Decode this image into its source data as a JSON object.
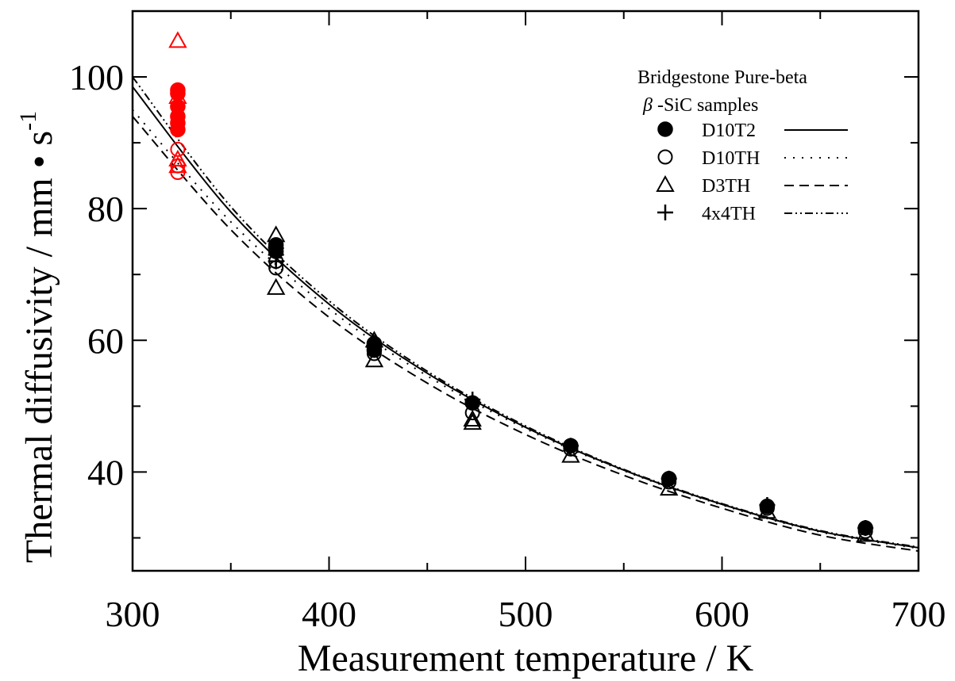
{
  "chart_data": {
    "type": "scatter",
    "xlabel": "Measurement temperature / K",
    "ylabel": "Thermal diffusivity / mm • s",
    "ylabel_exponent": "-1",
    "xlim": [
      300,
      700
    ],
    "ylim": [
      25,
      110
    ],
    "x_ticks": [
      300,
      400,
      500,
      600,
      700
    ],
    "x_minor_ticks": [
      350,
      450,
      550,
      650
    ],
    "y_ticks": [
      40,
      60,
      80,
      100
    ],
    "y_minor_ticks": [
      30,
      50,
      70,
      90,
      110
    ],
    "grid": false,
    "legend_position": "top-right",
    "legend": {
      "title_line1": "Bridgestone Pure-beta",
      "title_symbol": "β",
      "title_line2": "-SiC samples",
      "entries": [
        "D10T2",
        "D10TH",
        "D3TH",
        "4x4TH"
      ]
    },
    "colors": {
      "black": "#000000",
      "red": "#ff0000"
    },
    "series": [
      {
        "name": "D10T2",
        "marker": "filled-circle",
        "line_style": "solid",
        "points": [
          {
            "x": 323,
            "y": 98.0,
            "color": "#ff0000"
          },
          {
            "x": 323,
            "y": 97.5,
            "color": "#ff0000"
          },
          {
            "x": 323,
            "y": 95.5,
            "color": "#ff0000"
          },
          {
            "x": 323,
            "y": 94.0,
            "color": "#ff0000"
          },
          {
            "x": 323,
            "y": 93.0,
            "color": "#ff0000"
          },
          {
            "x": 323,
            "y": 92.0,
            "color": "#ff0000"
          },
          {
            "x": 373,
            "y": 74.5,
            "color": "#000000"
          },
          {
            "x": 373,
            "y": 73.5,
            "color": "#000000"
          },
          {
            "x": 423,
            "y": 59.5,
            "color": "#000000"
          },
          {
            "x": 423,
            "y": 58.5,
            "color": "#000000"
          },
          {
            "x": 473,
            "y": 50.5,
            "color": "#000000"
          },
          {
            "x": 523,
            "y": 44.0,
            "color": "#000000"
          },
          {
            "x": 573,
            "y": 39.0,
            "color": "#000000"
          },
          {
            "x": 623,
            "y": 34.8,
            "color": "#000000"
          },
          {
            "x": 673,
            "y": 31.5,
            "color": "#000000"
          }
        ]
      },
      {
        "name": "D10TH",
        "marker": "open-circle",
        "line_style": "dotted",
        "points": [
          {
            "x": 323,
            "y": 89.0,
            "color": "#ff0000"
          },
          {
            "x": 323,
            "y": 86.5,
            "color": "#ff0000"
          },
          {
            "x": 323,
            "y": 85.5,
            "color": "#ff0000"
          },
          {
            "x": 373,
            "y": 71.0,
            "color": "#000000"
          },
          {
            "x": 373,
            "y": 72.0,
            "color": "#000000"
          },
          {
            "x": 423,
            "y": 58.0,
            "color": "#000000"
          },
          {
            "x": 473,
            "y": 49.0,
            "color": "#000000"
          },
          {
            "x": 523,
            "y": 43.5,
            "color": "#000000"
          },
          {
            "x": 573,
            "y": 38.5,
            "color": "#000000"
          },
          {
            "x": 623,
            "y": 34.5,
            "color": "#000000"
          },
          {
            "x": 673,
            "y": 31.0,
            "color": "#000000"
          }
        ]
      },
      {
        "name": "D3TH",
        "marker": "open-triangle",
        "line_style": "dashed",
        "points": [
          {
            "x": 323,
            "y": 105.5,
            "color": "#ff0000"
          },
          {
            "x": 323,
            "y": 97.0,
            "color": "#ff0000"
          },
          {
            "x": 323,
            "y": 87.5,
            "color": "#ff0000"
          },
          {
            "x": 323,
            "y": 86.5,
            "color": "#ff0000"
          },
          {
            "x": 373,
            "y": 76.0,
            "color": "#000000"
          },
          {
            "x": 373,
            "y": 68.0,
            "color": "#000000"
          },
          {
            "x": 423,
            "y": 60.0,
            "color": "#000000"
          },
          {
            "x": 423,
            "y": 57.0,
            "color": "#000000"
          },
          {
            "x": 473,
            "y": 48.0,
            "color": "#000000"
          },
          {
            "x": 473,
            "y": 47.5,
            "color": "#000000"
          },
          {
            "x": 523,
            "y": 42.5,
            "color": "#000000"
          },
          {
            "x": 573,
            "y": 37.5,
            "color": "#000000"
          },
          {
            "x": 623,
            "y": 34.0,
            "color": "#000000"
          },
          {
            "x": 673,
            "y": 30.5,
            "color": "#000000"
          }
        ]
      },
      {
        "name": "4x4TH",
        "marker": "plus",
        "line_style": "dash-dot-dot",
        "points": [
          {
            "x": 373,
            "y": 74.0,
            "color": "#000000"
          },
          {
            "x": 373,
            "y": 73.0,
            "color": "#000000"
          },
          {
            "x": 373,
            "y": 72.0,
            "color": "#000000"
          },
          {
            "x": 423,
            "y": 59.0,
            "color": "#000000"
          },
          {
            "x": 473,
            "y": 51.0,
            "color": "#000000"
          },
          {
            "x": 523,
            "y": 44.0,
            "color": "#000000"
          },
          {
            "x": 573,
            "y": 39.0,
            "color": "#000000"
          },
          {
            "x": 623,
            "y": 35.0,
            "color": "#000000"
          },
          {
            "x": 673,
            "y": 31.5,
            "color": "#000000"
          }
        ]
      }
    ],
    "fit_curves": [
      {
        "name": "D10T2",
        "line_style": "solid",
        "x": [
          300,
          350,
          400,
          450,
          500,
          550,
          600,
          650,
          700
        ],
        "y": [
          98.5,
          79.5,
          65.5,
          55.0,
          46.8,
          40.3,
          35.1,
          31.0,
          28.5
        ]
      },
      {
        "name": "D10TH",
        "line_style": "dotted",
        "x": [
          300,
          350,
          400,
          450,
          500,
          550,
          600,
          650,
          700
        ],
        "y": [
          95.0,
          78.0,
          64.8,
          54.6,
          46.6,
          40.2,
          35.0,
          30.9,
          28.4
        ]
      },
      {
        "name": "D3TH",
        "line_style": "dashed",
        "x": [
          300,
          350,
          400,
          450,
          500,
          550,
          600,
          650,
          700
        ],
        "y": [
          94.0,
          76.8,
          63.5,
          53.5,
          45.7,
          39.5,
          34.5,
          30.4,
          28.0
        ]
      },
      {
        "name": "4x4TH",
        "line_style": "dash-dot-dot",
        "x": [
          300,
          350,
          400,
          450,
          500,
          550,
          600,
          650,
          700
        ],
        "y": [
          100.0,
          80.3,
          66.0,
          55.3,
          47.0,
          40.4,
          35.2,
          31.1,
          28.6
        ]
      }
    ]
  }
}
